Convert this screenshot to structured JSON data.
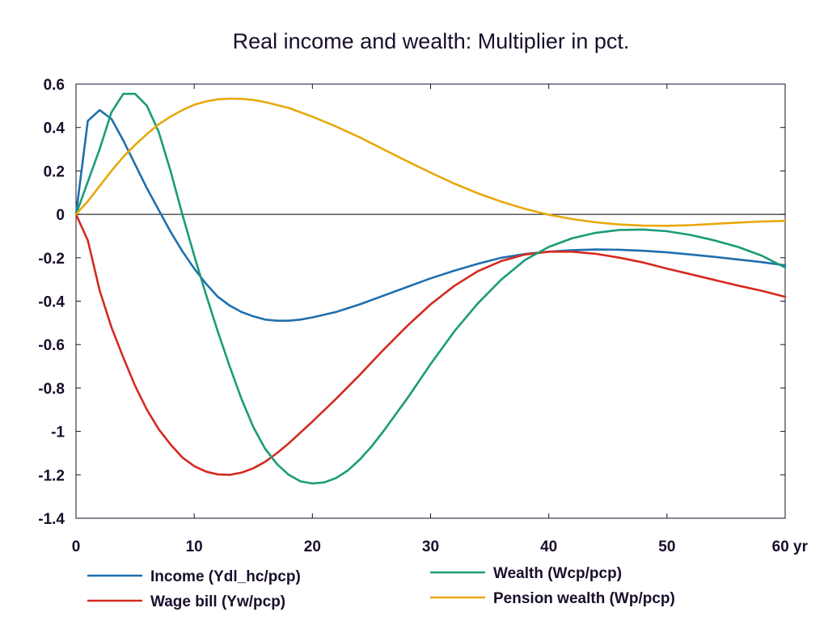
{
  "chart_data": {
    "type": "line",
    "title": "Real income and wealth: Multiplier in pct.",
    "xlabel": "",
    "ylabel": "",
    "xlim": [
      0,
      60
    ],
    "ylim": [
      -1.4,
      0.6
    ],
    "x_ticks": [
      0,
      10,
      20,
      30,
      40,
      50,
      60
    ],
    "x_tick_labels": [
      "0",
      "10",
      "20",
      "30",
      "40",
      "50",
      "60 yr"
    ],
    "y_ticks": [
      0.6,
      0.4,
      0.2,
      0,
      -0.2,
      -0.4,
      -0.6,
      -0.8,
      -1,
      -1.2,
      -1.4
    ],
    "y_tick_labels": [
      "0.6",
      "0.4",
      "0.2",
      "0",
      "-0.2",
      "-0.4",
      "-0.6",
      "-0.8",
      "-1",
      "-1.2",
      "-1.4"
    ],
    "grid": false,
    "zero_line": true,
    "legend_position": "bottom",
    "series": [
      {
        "name": "Income (Ydl_hc/pcp)",
        "color": "#1f6fae",
        "points": [
          [
            0,
            0
          ],
          [
            1,
            0.43
          ],
          [
            2,
            0.48
          ],
          [
            3,
            0.44
          ],
          [
            4,
            0.34
          ],
          [
            5,
            0.23
          ],
          [
            6,
            0.12
          ],
          [
            7,
            0.02
          ],
          [
            8,
            -0.08
          ],
          [
            9,
            -0.17
          ],
          [
            10,
            -0.25
          ],
          [
            11,
            -0.32
          ],
          [
            12,
            -0.38
          ],
          [
            13,
            -0.42
          ],
          [
            14,
            -0.45
          ],
          [
            15,
            -0.47
          ],
          [
            16,
            -0.485
          ],
          [
            17,
            -0.49
          ],
          [
            18,
            -0.49
          ],
          [
            19,
            -0.485
          ],
          [
            20,
            -0.475
          ],
          [
            22,
            -0.45
          ],
          [
            24,
            -0.415
          ],
          [
            26,
            -0.375
          ],
          [
            28,
            -0.335
          ],
          [
            30,
            -0.295
          ],
          [
            32,
            -0.26
          ],
          [
            34,
            -0.228
          ],
          [
            36,
            -0.2
          ],
          [
            38,
            -0.183
          ],
          [
            40,
            -0.172
          ],
          [
            42,
            -0.165
          ],
          [
            44,
            -0.162
          ],
          [
            46,
            -0.163
          ],
          [
            48,
            -0.168
          ],
          [
            50,
            -0.175
          ],
          [
            52,
            -0.185
          ],
          [
            54,
            -0.196
          ],
          [
            56,
            -0.208
          ],
          [
            58,
            -0.22
          ],
          [
            60,
            -0.235
          ]
        ]
      },
      {
        "name": "Wage bill (Yw/pcp)",
        "color": "#d42a1f",
        "points": [
          [
            0,
            0
          ],
          [
            1,
            -0.12
          ],
          [
            2,
            -0.35
          ],
          [
            3,
            -0.52
          ],
          [
            4,
            -0.66
          ],
          [
            5,
            -0.79
          ],
          [
            6,
            -0.9
          ],
          [
            7,
            -0.99
          ],
          [
            8,
            -1.06
          ],
          [
            9,
            -1.12
          ],
          [
            10,
            -1.16
          ],
          [
            11,
            -1.185
          ],
          [
            12,
            -1.198
          ],
          [
            13,
            -1.2
          ],
          [
            14,
            -1.19
          ],
          [
            15,
            -1.17
          ],
          [
            16,
            -1.14
          ],
          [
            17,
            -1.1
          ],
          [
            18,
            -1.055
          ],
          [
            19,
            -1.005
          ],
          [
            20,
            -0.955
          ],
          [
            22,
            -0.85
          ],
          [
            24,
            -0.74
          ],
          [
            26,
            -0.625
          ],
          [
            28,
            -0.515
          ],
          [
            30,
            -0.415
          ],
          [
            32,
            -0.33
          ],
          [
            34,
            -0.262
          ],
          [
            36,
            -0.215
          ],
          [
            38,
            -0.185
          ],
          [
            40,
            -0.172
          ],
          [
            42,
            -0.172
          ],
          [
            44,
            -0.182
          ],
          [
            46,
            -0.2
          ],
          [
            48,
            -0.222
          ],
          [
            50,
            -0.25
          ],
          [
            52,
            -0.276
          ],
          [
            54,
            -0.302
          ],
          [
            56,
            -0.328
          ],
          [
            58,
            -0.352
          ],
          [
            60,
            -0.38
          ]
        ]
      },
      {
        "name": "Wealth (Wcp/pcp)",
        "color": "#1a9c78",
        "points": [
          [
            0,
            0
          ],
          [
            1,
            0.15
          ],
          [
            2,
            0.3
          ],
          [
            3,
            0.47
          ],
          [
            4,
            0.555
          ],
          [
            5,
            0.555
          ],
          [
            6,
            0.5
          ],
          [
            7,
            0.38
          ],
          [
            8,
            0.2
          ],
          [
            9,
            0.0
          ],
          [
            10,
            -0.19
          ],
          [
            11,
            -0.37
          ],
          [
            12,
            -0.54
          ],
          [
            13,
            -0.7
          ],
          [
            14,
            -0.85
          ],
          [
            15,
            -0.98
          ],
          [
            16,
            -1.08
          ],
          [
            17,
            -1.15
          ],
          [
            18,
            -1.2
          ],
          [
            19,
            -1.23
          ],
          [
            20,
            -1.24
          ],
          [
            21,
            -1.235
          ],
          [
            22,
            -1.215
          ],
          [
            23,
            -1.18
          ],
          [
            24,
            -1.13
          ],
          [
            25,
            -1.07
          ],
          [
            26,
            -1.0
          ],
          [
            28,
            -0.85
          ],
          [
            30,
            -0.69
          ],
          [
            32,
            -0.54
          ],
          [
            34,
            -0.41
          ],
          [
            36,
            -0.3
          ],
          [
            38,
            -0.21
          ],
          [
            40,
            -0.15
          ],
          [
            42,
            -0.11
          ],
          [
            44,
            -0.085
          ],
          [
            46,
            -0.072
          ],
          [
            48,
            -0.07
          ],
          [
            50,
            -0.078
          ],
          [
            52,
            -0.095
          ],
          [
            54,
            -0.12
          ],
          [
            56,
            -0.15
          ],
          [
            58,
            -0.19
          ],
          [
            60,
            -0.245
          ]
        ]
      },
      {
        "name": "Pension wealth (Wp/pcp)",
        "color": "#e8a80c",
        "points": [
          [
            0,
            0
          ],
          [
            1,
            0.06
          ],
          [
            2,
            0.13
          ],
          [
            3,
            0.2
          ],
          [
            4,
            0.265
          ],
          [
            5,
            0.32
          ],
          [
            6,
            0.37
          ],
          [
            7,
            0.415
          ],
          [
            8,
            0.45
          ],
          [
            9,
            0.48
          ],
          [
            10,
            0.505
          ],
          [
            11,
            0.52
          ],
          [
            12,
            0.53
          ],
          [
            13,
            0.533
          ],
          [
            14,
            0.532
          ],
          [
            15,
            0.527
          ],
          [
            16,
            0.517
          ],
          [
            18,
            0.49
          ],
          [
            20,
            0.45
          ],
          [
            22,
            0.405
          ],
          [
            24,
            0.355
          ],
          [
            26,
            0.3
          ],
          [
            28,
            0.245
          ],
          [
            30,
            0.192
          ],
          [
            32,
            0.142
          ],
          [
            34,
            0.097
          ],
          [
            36,
            0.058
          ],
          [
            38,
            0.025
          ],
          [
            40,
            -0.002
          ],
          [
            42,
            -0.022
          ],
          [
            44,
            -0.037
          ],
          [
            46,
            -0.047
          ],
          [
            48,
            -0.052
          ],
          [
            50,
            -0.053
          ],
          [
            52,
            -0.05
          ],
          [
            54,
            -0.044
          ],
          [
            56,
            -0.038
          ],
          [
            58,
            -0.033
          ],
          [
            60,
            -0.03
          ]
        ]
      }
    ]
  }
}
